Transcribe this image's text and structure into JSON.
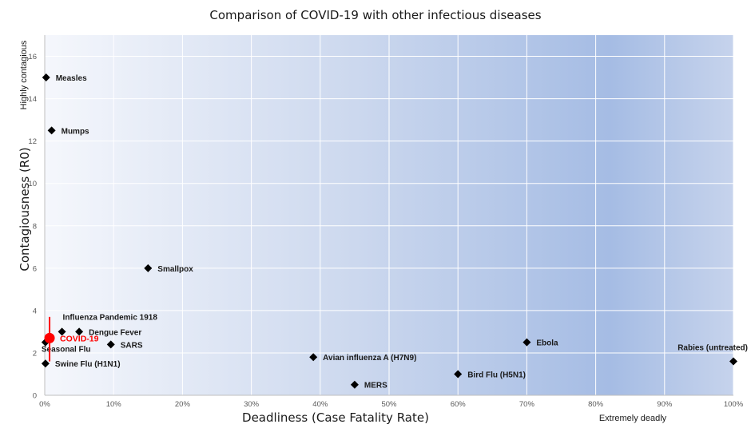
{
  "chart_data": {
    "type": "scatter",
    "title": "Comparison of COVID-19 with other infectious diseases",
    "xlabel": "Deadliness (Case Fatality Rate)",
    "ylabel": "Contagiousness (R0)",
    "y_top_note": "Highly contagious",
    "x_right_note": "Extremely deadly",
    "xlim": [
      0,
      100
    ],
    "ylim": [
      0,
      17
    ],
    "x_ticks": [
      "0%",
      "10%",
      "20%",
      "30%",
      "40%",
      "50%",
      "60%",
      "70%",
      "80%",
      "90%",
      "100%"
    ],
    "y_ticks": [
      "0",
      "2",
      "4",
      "6",
      "8",
      "10",
      "12",
      "14",
      "16"
    ],
    "grid": true,
    "highlight_color": "#ff0000",
    "marker_color": "#000000",
    "points": [
      {
        "name": "Measles",
        "x": 0.2,
        "y": 15
      },
      {
        "name": "Mumps",
        "x": 1,
        "y": 12.5
      },
      {
        "name": "Smallpox",
        "x": 15,
        "y": 6
      },
      {
        "name": "Influenza Pandemic 1918",
        "x": 2.5,
        "y": 3
      },
      {
        "name": "Dengue Fever",
        "x": 5,
        "y": 3
      },
      {
        "name": "SARS",
        "x": 9.6,
        "y": 2.4
      },
      {
        "name": "Seasonal Flu",
        "x": 0.1,
        "y": 2.5
      },
      {
        "name": "Swine Flu (H1N1)",
        "x": 0.1,
        "y": 1.5
      },
      {
        "name": "Avian influenza A (H7N9)",
        "x": 39,
        "y": 1.8
      },
      {
        "name": "MERS",
        "x": 45,
        "y": 0.5
      },
      {
        "name": "Bird Flu (H5N1)",
        "x": 60,
        "y": 1
      },
      {
        "name": "Ebola",
        "x": 70,
        "y": 2.5
      },
      {
        "name": "Rabies (untreated)",
        "x": 100,
        "y": 1.6
      }
    ],
    "highlight": {
      "name": "COVID-19",
      "x": 0.7,
      "y": 2.7,
      "y_range": [
        1.6,
        3.7
      ]
    }
  }
}
